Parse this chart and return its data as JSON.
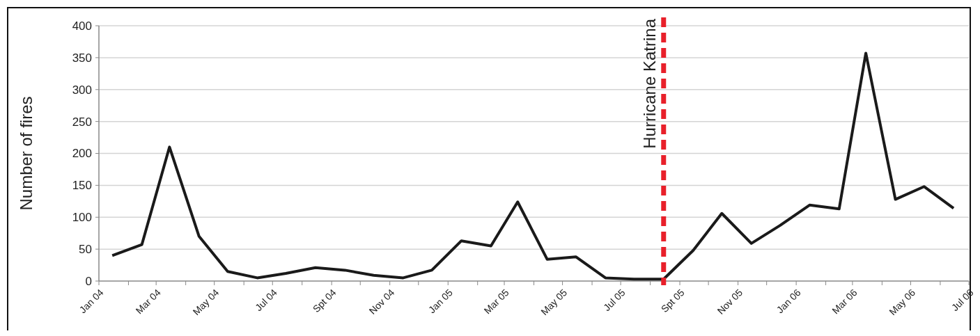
{
  "chart_data": {
    "type": "line",
    "ylabel": "Number of fires",
    "x": [
      "2004-01-15",
      "2004-02-15",
      "2004-03-15",
      "2004-04-15",
      "2004-05-15",
      "2004-06-15",
      "2004-07-15",
      "2004-08-15",
      "2004-09-15",
      "2004-10-15",
      "2004-11-15",
      "2004-12-15",
      "2005-01-15",
      "2005-02-15",
      "2005-03-15",
      "2005-04-15",
      "2005-05-15",
      "2005-06-15",
      "2005-07-15",
      "2005-08-15",
      "2005-09-15",
      "2005-10-15",
      "2005-11-15",
      "2005-12-15",
      "2006-01-15",
      "2006-02-15",
      "2006-03-15",
      "2006-04-15",
      "2006-05-15",
      "2006-06-15"
    ],
    "series": [
      {
        "color": "#1a1a1a",
        "values": [
          40,
          57,
          210,
          70,
          15,
          5,
          12,
          21,
          17,
          9,
          5,
          17,
          63,
          55,
          124,
          34,
          38,
          5,
          3,
          3,
          48,
          106,
          59,
          87,
          119,
          113,
          357,
          128,
          148,
          114
        ]
      }
    ],
    "xlim": [
      "2004-01",
      "2006-07"
    ],
    "xticks": [
      {
        "value": "2004-01",
        "label": "Jan 04"
      },
      {
        "value": "2004-02",
        "label": null
      },
      {
        "value": "2004-03",
        "label": "Mar 04"
      },
      {
        "value": "2004-04",
        "label": null
      },
      {
        "value": "2004-05",
        "label": "May 04"
      },
      {
        "value": "2004-06",
        "label": null
      },
      {
        "value": "2004-07",
        "label": "Jul 04"
      },
      {
        "value": "2004-08",
        "label": null
      },
      {
        "value": "2004-09",
        "label": "Spt 04"
      },
      {
        "value": "2004-10",
        "label": null
      },
      {
        "value": "2004-11",
        "label": "Nov 04"
      },
      {
        "value": "2004-12",
        "label": null
      },
      {
        "value": "2005-01",
        "label": "Jan 05"
      },
      {
        "value": "2005-02",
        "label": null
      },
      {
        "value": "2005-03",
        "label": "Mar 05"
      },
      {
        "value": "2005-04",
        "label": null
      },
      {
        "value": "2005-05",
        "label": "May 05"
      },
      {
        "value": "2005-06",
        "label": null
      },
      {
        "value": "2005-07",
        "label": "Jul 05"
      },
      {
        "value": "2005-08",
        "label": null
      },
      {
        "value": "2005-09",
        "label": "Spt 05"
      },
      {
        "value": "2005-10",
        "label": null
      },
      {
        "value": "2005-11",
        "label": "Nov 05"
      },
      {
        "value": "2005-12",
        "label": null
      },
      {
        "value": "2006-01",
        "label": "Jan 06"
      },
      {
        "value": "2006-02",
        "label": null
      },
      {
        "value": "2006-03",
        "label": "Mar 06"
      },
      {
        "value": "2006-04",
        "label": null
      },
      {
        "value": "2006-05",
        "label": "May 06"
      },
      {
        "value": "2006-06",
        "label": null
      },
      {
        "value": "2006-07",
        "label": "Jul 06"
      }
    ],
    "ylim": [
      0,
      400
    ],
    "yticks": [
      0,
      50,
      100,
      150,
      200,
      250,
      300,
      350,
      400
    ],
    "grid": "y",
    "marker": "none",
    "line_style": "solid",
    "ref_lines": [
      {
        "axis": "x",
        "value": "2005-08-15",
        "label": "Hurricane Katrina",
        "color": "#e8202a",
        "line_style": "dashed"
      }
    ]
  }
}
